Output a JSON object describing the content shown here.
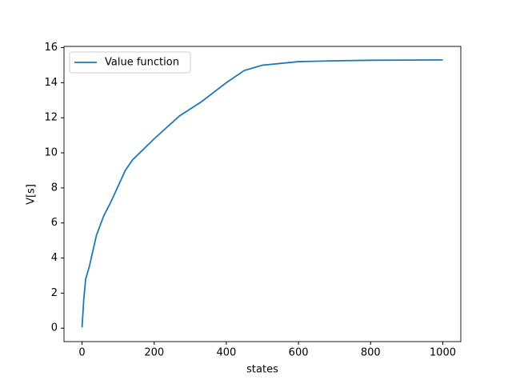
{
  "chart_data": {
    "type": "line",
    "x_label": "states",
    "y_label": "V[s]",
    "x": [
      0,
      5,
      10,
      20,
      40,
      60,
      80,
      100,
      120,
      140,
      160,
      200,
      270,
      330,
      400,
      450,
      500,
      600,
      700,
      800,
      900,
      1000
    ],
    "series": [
      {
        "name": "Value function",
        "color": "#1f77b4",
        "values": [
          0.05,
          1.7,
          2.8,
          3.5,
          5.3,
          6.4,
          7.2,
          8.1,
          9.0,
          9.6,
          10.0,
          10.8,
          12.1,
          12.9,
          14.0,
          14.7,
          15.0,
          15.2,
          15.25,
          15.28,
          15.29,
          15.3
        ]
      }
    ],
    "xlim": [
      -50,
      1050
    ],
    "ylim": [
      -0.765,
      16.07
    ],
    "xticks": [
      0,
      200,
      400,
      600,
      800,
      1000
    ],
    "yticks": [
      0,
      2,
      4,
      6,
      8,
      10,
      12,
      14,
      16
    ],
    "legend": "upper left"
  }
}
